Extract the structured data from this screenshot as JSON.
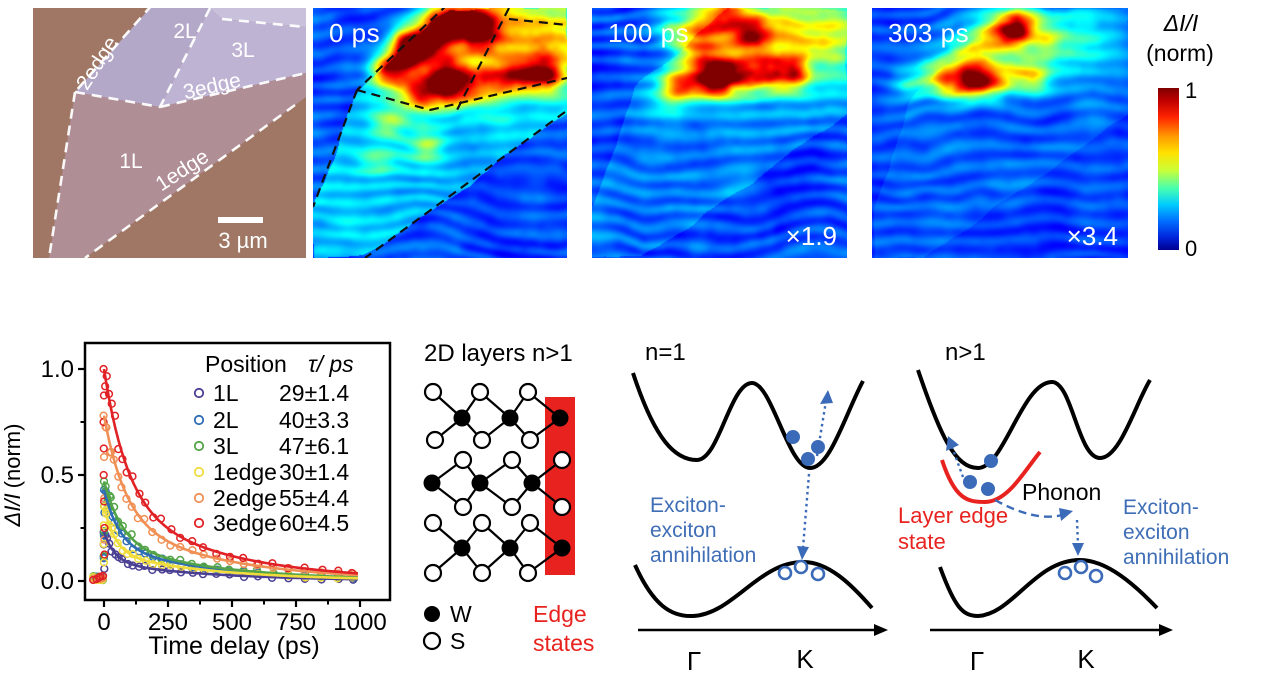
{
  "figure": {
    "optical": {
      "labels": {
        "edge2": "2edge",
        "layer2": "2L",
        "layer3": "3L",
        "edge3": "3edge",
        "layer1": "1L",
        "edge1": "1edge"
      },
      "scale_bar": "3 µm",
      "colors": {
        "background": "#9f7764",
        "layer1": "#b08e96",
        "layer2": "#b4a8c9",
        "layer3": "#bfb3d3",
        "bulk": "#c9c0dc"
      }
    },
    "ta_panels": [
      {
        "time": "0 ps",
        "mult": ""
      },
      {
        "time": "100 ps",
        "mult": "×1.9"
      },
      {
        "time": "303 ps",
        "mult": "×3.4"
      }
    ],
    "colorbar": {
      "label_main": "ΔI/I",
      "label_unit": "(norm)",
      "max": "1",
      "min": "0"
    }
  },
  "chart_data": {
    "type": "scatter",
    "xlabel": "Time delay (ps)",
    "ylabel_main": "ΔI/I",
    "ylabel_unit": "(norm)",
    "xticks": [
      0,
      250,
      500,
      750,
      1000
    ],
    "yticks": [
      "0.0",
      "0.5",
      "1.0"
    ],
    "xlim": [
      -75,
      1120
    ],
    "ylim": [
      -0.08,
      1.12
    ],
    "legend_header_position": "Position",
    "legend_header_tau": "τ/ ps",
    "series": [
      {
        "label": "1L",
        "tau": "29±1.4",
        "tau_ps": 29,
        "peak": 0.23,
        "color": "#4a3f92"
      },
      {
        "label": "2L",
        "tau": "40±3.3",
        "tau_ps": 40,
        "peak": 0.43,
        "color": "#2e6db4"
      },
      {
        "label": "3L",
        "tau": "47±6.1",
        "tau_ps": 47,
        "peak": 0.47,
        "color": "#53a447"
      },
      {
        "label": "1edge",
        "tau": "30±1.4",
        "tau_ps": 30,
        "peak": 0.35,
        "color": "#f0dc3a"
      },
      {
        "label": "2edge",
        "tau": "55±4.4",
        "tau_ps": 55,
        "peak": 0.78,
        "color": "#f09055"
      },
      {
        "label": "3edge",
        "tau": "60±4.5",
        "tau_ps": 60,
        "peak": 1.0,
        "color": "#e02125"
      }
    ]
  },
  "lattice": {
    "title": "2D layers n>1",
    "legend_w": "W",
    "legend_s": "S",
    "edge_label_1": "Edge",
    "edge_label_2": "states",
    "edge_color": "#e8231f"
  },
  "band_n1": {
    "title": "n=1",
    "annotation_1": "Exciton-",
    "annotation_2": "exciton",
    "annotation_3": "annihilation",
    "gamma": "Γ",
    "k": "K"
  },
  "band_n2": {
    "title": "n>1",
    "phonon": "Phonon",
    "layer_edge_1": "Layer edge",
    "layer_edge_2": "state",
    "annotation_1": "Exciton-",
    "annotation_2": "exciton",
    "annotation_3": "annihilation",
    "gamma": "Γ",
    "k": "K"
  }
}
